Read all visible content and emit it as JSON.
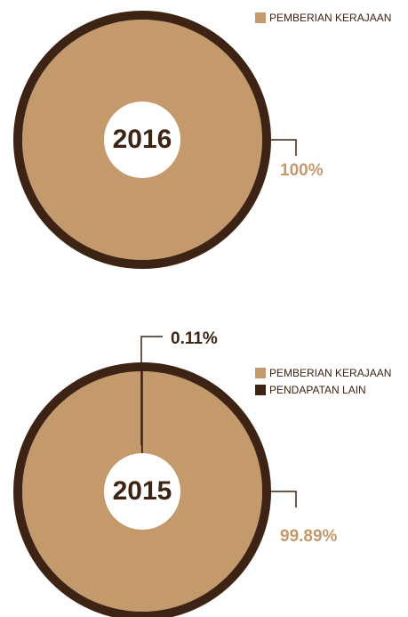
{
  "chart_data": [
    {
      "type": "pie",
      "title": "2016",
      "categories": [
        "PEMBERIAN KERAJAAN"
      ],
      "values": [
        100
      ],
      "value_labels": [
        "100%"
      ],
      "colors": [
        "#c49a6c"
      ]
    },
    {
      "type": "pie",
      "title": "2015",
      "categories": [
        "PEMBERIAN KERAJAAN",
        "PENDAPATAN LAIN"
      ],
      "values": [
        99.89,
        0.11
      ],
      "value_labels": [
        "99.89%",
        "0.11%"
      ],
      "colors": [
        "#c49a6c",
        "#3d2314"
      ]
    }
  ]
}
